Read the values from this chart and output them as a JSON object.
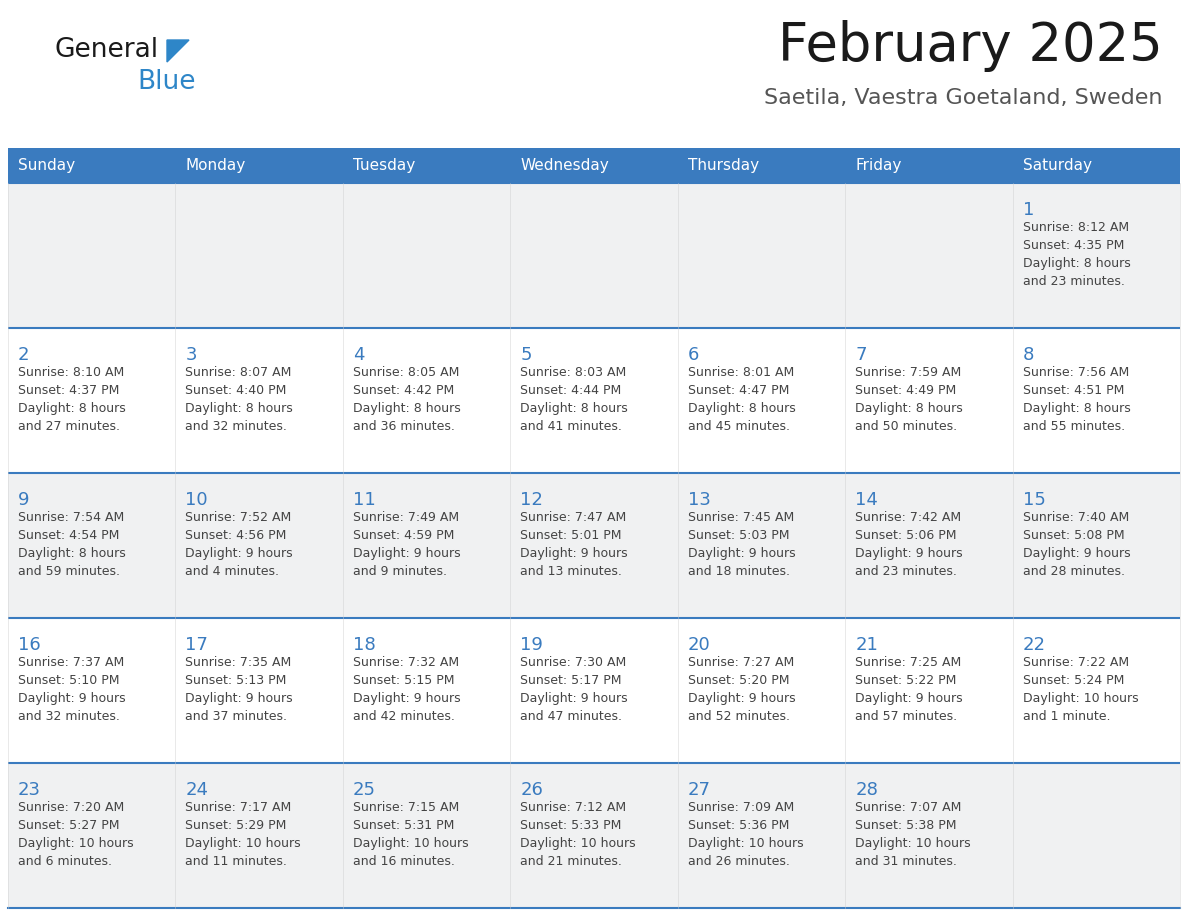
{
  "title": "February 2025",
  "subtitle": "Saetila, Vaestra Goetaland, Sweden",
  "days_of_week": [
    "Sunday",
    "Monday",
    "Tuesday",
    "Wednesday",
    "Thursday",
    "Friday",
    "Saturday"
  ],
  "header_bg": "#3a7bbf",
  "header_text": "#ffffff",
  "cell_bg_light": "#f0f1f2",
  "cell_bg_white": "#ffffff",
  "line_color": "#3a7bbf",
  "day_number_color": "#3a7bbf",
  "text_color": "#444444",
  "background": "#ffffff",
  "row_backgrounds": [
    "light",
    "white",
    "light",
    "white",
    "light"
  ],
  "calendar": [
    [
      null,
      null,
      null,
      null,
      null,
      null,
      {
        "day": 1,
        "sunrise": "8:12 AM",
        "sunset": "4:35 PM",
        "daylight_line1": "Daylight: 8 hours",
        "daylight_line2": "and 23 minutes."
      }
    ],
    [
      {
        "day": 2,
        "sunrise": "8:10 AM",
        "sunset": "4:37 PM",
        "daylight_line1": "Daylight: 8 hours",
        "daylight_line2": "and 27 minutes."
      },
      {
        "day": 3,
        "sunrise": "8:07 AM",
        "sunset": "4:40 PM",
        "daylight_line1": "Daylight: 8 hours",
        "daylight_line2": "and 32 minutes."
      },
      {
        "day": 4,
        "sunrise": "8:05 AM",
        "sunset": "4:42 PM",
        "daylight_line1": "Daylight: 8 hours",
        "daylight_line2": "and 36 minutes."
      },
      {
        "day": 5,
        "sunrise": "8:03 AM",
        "sunset": "4:44 PM",
        "daylight_line1": "Daylight: 8 hours",
        "daylight_line2": "and 41 minutes."
      },
      {
        "day": 6,
        "sunrise": "8:01 AM",
        "sunset": "4:47 PM",
        "daylight_line1": "Daylight: 8 hours",
        "daylight_line2": "and 45 minutes."
      },
      {
        "day": 7,
        "sunrise": "7:59 AM",
        "sunset": "4:49 PM",
        "daylight_line1": "Daylight: 8 hours",
        "daylight_line2": "and 50 minutes."
      },
      {
        "day": 8,
        "sunrise": "7:56 AM",
        "sunset": "4:51 PM",
        "daylight_line1": "Daylight: 8 hours",
        "daylight_line2": "and 55 minutes."
      }
    ],
    [
      {
        "day": 9,
        "sunrise": "7:54 AM",
        "sunset": "4:54 PM",
        "daylight_line1": "Daylight: 8 hours",
        "daylight_line2": "and 59 minutes."
      },
      {
        "day": 10,
        "sunrise": "7:52 AM",
        "sunset": "4:56 PM",
        "daylight_line1": "Daylight: 9 hours",
        "daylight_line2": "and 4 minutes."
      },
      {
        "day": 11,
        "sunrise": "7:49 AM",
        "sunset": "4:59 PM",
        "daylight_line1": "Daylight: 9 hours",
        "daylight_line2": "and 9 minutes."
      },
      {
        "day": 12,
        "sunrise": "7:47 AM",
        "sunset": "5:01 PM",
        "daylight_line1": "Daylight: 9 hours",
        "daylight_line2": "and 13 minutes."
      },
      {
        "day": 13,
        "sunrise": "7:45 AM",
        "sunset": "5:03 PM",
        "daylight_line1": "Daylight: 9 hours",
        "daylight_line2": "and 18 minutes."
      },
      {
        "day": 14,
        "sunrise": "7:42 AM",
        "sunset": "5:06 PM",
        "daylight_line1": "Daylight: 9 hours",
        "daylight_line2": "and 23 minutes."
      },
      {
        "day": 15,
        "sunrise": "7:40 AM",
        "sunset": "5:08 PM",
        "daylight_line1": "Daylight: 9 hours",
        "daylight_line2": "and 28 minutes."
      }
    ],
    [
      {
        "day": 16,
        "sunrise": "7:37 AM",
        "sunset": "5:10 PM",
        "daylight_line1": "Daylight: 9 hours",
        "daylight_line2": "and 32 minutes."
      },
      {
        "day": 17,
        "sunrise": "7:35 AM",
        "sunset": "5:13 PM",
        "daylight_line1": "Daylight: 9 hours",
        "daylight_line2": "and 37 minutes."
      },
      {
        "day": 18,
        "sunrise": "7:32 AM",
        "sunset": "5:15 PM",
        "daylight_line1": "Daylight: 9 hours",
        "daylight_line2": "and 42 minutes."
      },
      {
        "day": 19,
        "sunrise": "7:30 AM",
        "sunset": "5:17 PM",
        "daylight_line1": "Daylight: 9 hours",
        "daylight_line2": "and 47 minutes."
      },
      {
        "day": 20,
        "sunrise": "7:27 AM",
        "sunset": "5:20 PM",
        "daylight_line1": "Daylight: 9 hours",
        "daylight_line2": "and 52 minutes."
      },
      {
        "day": 21,
        "sunrise": "7:25 AM",
        "sunset": "5:22 PM",
        "daylight_line1": "Daylight: 9 hours",
        "daylight_line2": "and 57 minutes."
      },
      {
        "day": 22,
        "sunrise": "7:22 AM",
        "sunset": "5:24 PM",
        "daylight_line1": "Daylight: 10 hours",
        "daylight_line2": "and 1 minute."
      }
    ],
    [
      {
        "day": 23,
        "sunrise": "7:20 AM",
        "sunset": "5:27 PM",
        "daylight_line1": "Daylight: 10 hours",
        "daylight_line2": "and 6 minutes."
      },
      {
        "day": 24,
        "sunrise": "7:17 AM",
        "sunset": "5:29 PM",
        "daylight_line1": "Daylight: 10 hours",
        "daylight_line2": "and 11 minutes."
      },
      {
        "day": 25,
        "sunrise": "7:15 AM",
        "sunset": "5:31 PM",
        "daylight_line1": "Daylight: 10 hours",
        "daylight_line2": "and 16 minutes."
      },
      {
        "day": 26,
        "sunrise": "7:12 AM",
        "sunset": "5:33 PM",
        "daylight_line1": "Daylight: 10 hours",
        "daylight_line2": "and 21 minutes."
      },
      {
        "day": 27,
        "sunrise": "7:09 AM",
        "sunset": "5:36 PM",
        "daylight_line1": "Daylight: 10 hours",
        "daylight_line2": "and 26 minutes."
      },
      {
        "day": 28,
        "sunrise": "7:07 AM",
        "sunset": "5:38 PM",
        "daylight_line1": "Daylight: 10 hours",
        "daylight_line2": "and 31 minutes."
      },
      null
    ]
  ],
  "logo_text1": "General",
  "logo_text2": "Blue",
  "logo_color1": "#1a1a1a",
  "logo_color2": "#2e86c8",
  "logo_triangle_color": "#2e86c8"
}
